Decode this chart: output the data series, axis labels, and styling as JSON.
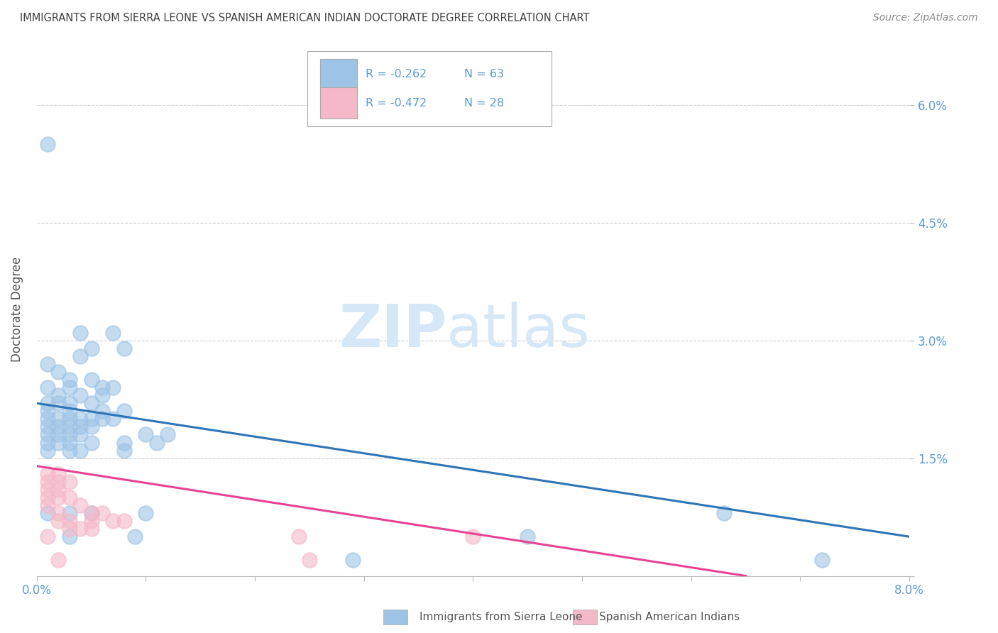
{
  "title": "IMMIGRANTS FROM SIERRA LEONE VS SPANISH AMERICAN INDIAN DOCTORATE DEGREE CORRELATION CHART",
  "source": "Source: ZipAtlas.com",
  "ylabel": "Doctorate Degree",
  "xlim": [
    0.0,
    0.08
  ],
  "ylim": [
    0.0,
    0.068
  ],
  "yticks": [
    0.0,
    0.015,
    0.03,
    0.045,
    0.06
  ],
  "yticklabels": [
    "",
    "1.5%",
    "3.0%",
    "4.5%",
    "6.0%"
  ],
  "right_ytick_color": "#5b9bd5",
  "legend1_label": "Immigrants from Sierra Leone",
  "legend2_label": "Spanish American Indians",
  "R1": "-0.262",
  "N1": "63",
  "R2": "-0.472",
  "N2": "28",
  "blue_color": "#9dc3e6",
  "pink_color": "#f4b8c8",
  "blue_line_color": "#2e75b6",
  "pink_line_color": "#e84393",
  "watermark_zip": "ZIP",
  "watermark_atlas": "atlas",
  "background_color": "#ffffff",
  "grid_color": "#d0d0d0",
  "title_color": "#404040",
  "legend_text_color": "#5b9bd5",
  "blue_scatter": [
    [
      0.001,
      0.055
    ],
    [
      0.004,
      0.031
    ],
    [
      0.007,
      0.031
    ],
    [
      0.005,
      0.029
    ],
    [
      0.008,
      0.029
    ],
    [
      0.004,
      0.028
    ],
    [
      0.001,
      0.027
    ],
    [
      0.002,
      0.026
    ],
    [
      0.003,
      0.025
    ],
    [
      0.005,
      0.025
    ],
    [
      0.001,
      0.024
    ],
    [
      0.003,
      0.024
    ],
    [
      0.006,
      0.024
    ],
    [
      0.007,
      0.024
    ],
    [
      0.002,
      0.023
    ],
    [
      0.004,
      0.023
    ],
    [
      0.006,
      0.023
    ],
    [
      0.001,
      0.022
    ],
    [
      0.002,
      0.022
    ],
    [
      0.003,
      0.022
    ],
    [
      0.005,
      0.022
    ],
    [
      0.001,
      0.021
    ],
    [
      0.003,
      0.021
    ],
    [
      0.006,
      0.021
    ],
    [
      0.008,
      0.021
    ],
    [
      0.001,
      0.02
    ],
    [
      0.002,
      0.02
    ],
    [
      0.003,
      0.02
    ],
    [
      0.004,
      0.02
    ],
    [
      0.005,
      0.02
    ],
    [
      0.006,
      0.02
    ],
    [
      0.007,
      0.02
    ],
    [
      0.001,
      0.019
    ],
    [
      0.002,
      0.019
    ],
    [
      0.003,
      0.019
    ],
    [
      0.004,
      0.019
    ],
    [
      0.005,
      0.019
    ],
    [
      0.001,
      0.018
    ],
    [
      0.002,
      0.018
    ],
    [
      0.003,
      0.018
    ],
    [
      0.004,
      0.018
    ],
    [
      0.01,
      0.018
    ],
    [
      0.012,
      0.018
    ],
    [
      0.001,
      0.017
    ],
    [
      0.002,
      0.017
    ],
    [
      0.003,
      0.017
    ],
    [
      0.005,
      0.017
    ],
    [
      0.008,
      0.017
    ],
    [
      0.011,
      0.017
    ],
    [
      0.001,
      0.016
    ],
    [
      0.003,
      0.016
    ],
    [
      0.004,
      0.016
    ],
    [
      0.008,
      0.016
    ],
    [
      0.001,
      0.008
    ],
    [
      0.003,
      0.008
    ],
    [
      0.005,
      0.008
    ],
    [
      0.01,
      0.008
    ],
    [
      0.063,
      0.008
    ],
    [
      0.003,
      0.005
    ],
    [
      0.009,
      0.005
    ],
    [
      0.045,
      0.005
    ],
    [
      0.029,
      0.002
    ],
    [
      0.072,
      0.002
    ]
  ],
  "pink_scatter": [
    [
      0.001,
      0.013
    ],
    [
      0.002,
      0.013
    ],
    [
      0.001,
      0.012
    ],
    [
      0.002,
      0.012
    ],
    [
      0.003,
      0.012
    ],
    [
      0.001,
      0.011
    ],
    [
      0.002,
      0.011
    ],
    [
      0.001,
      0.01
    ],
    [
      0.002,
      0.01
    ],
    [
      0.003,
      0.01
    ],
    [
      0.001,
      0.009
    ],
    [
      0.004,
      0.009
    ],
    [
      0.002,
      0.008
    ],
    [
      0.005,
      0.008
    ],
    [
      0.006,
      0.008
    ],
    [
      0.002,
      0.007
    ],
    [
      0.003,
      0.007
    ],
    [
      0.005,
      0.007
    ],
    [
      0.007,
      0.007
    ],
    [
      0.008,
      0.007
    ],
    [
      0.003,
      0.006
    ],
    [
      0.004,
      0.006
    ],
    [
      0.005,
      0.006
    ],
    [
      0.001,
      0.005
    ],
    [
      0.024,
      0.005
    ],
    [
      0.04,
      0.005
    ],
    [
      0.002,
      0.002
    ],
    [
      0.025,
      0.002
    ]
  ],
  "blue_line_x": [
    0.0,
    0.08
  ],
  "blue_line_y": [
    0.022,
    0.005
  ],
  "pink_line_x": [
    0.0,
    0.065
  ],
  "pink_line_y": [
    0.014,
    0.0
  ]
}
